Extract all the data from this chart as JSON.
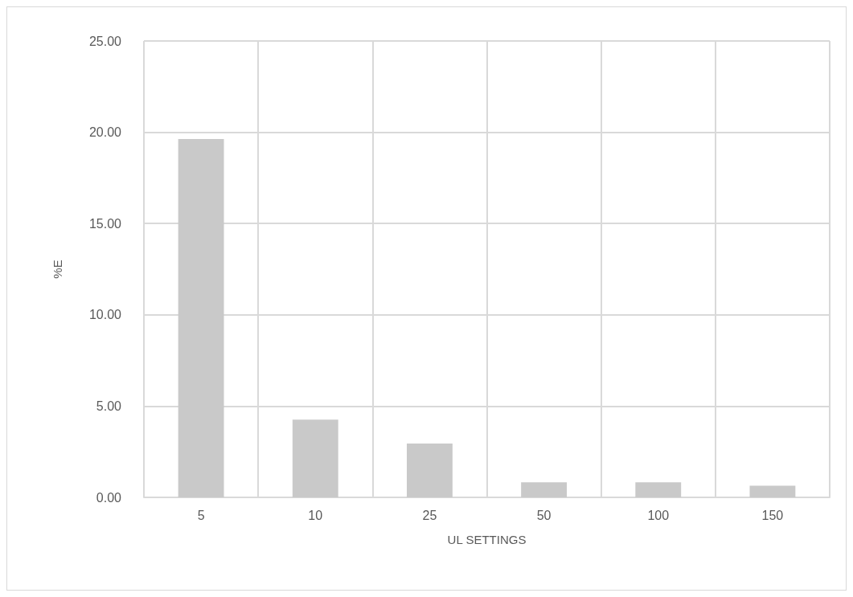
{
  "chart_data": {
    "type": "bar",
    "xlabel": "UL SETTINGS",
    "ylabel": "%E",
    "categories": [
      "5",
      "10",
      "25",
      "50",
      "100",
      "150"
    ],
    "values": [
      19.63,
      4.26,
      2.95,
      0.83,
      0.83,
      0.64
    ],
    "color": "#c9c9c9",
    "ylim": [
      0,
      25
    ],
    "yticks": [
      {
        "value": 0,
        "label": "0.00"
      },
      {
        "value": 5,
        "label": "5.00"
      },
      {
        "value": 10,
        "label": "10.00"
      },
      {
        "value": 15,
        "label": "15.00"
      },
      {
        "value": 20,
        "label": "20.00"
      },
      {
        "value": 25,
        "label": "25.00"
      }
    ],
    "grid": true
  }
}
